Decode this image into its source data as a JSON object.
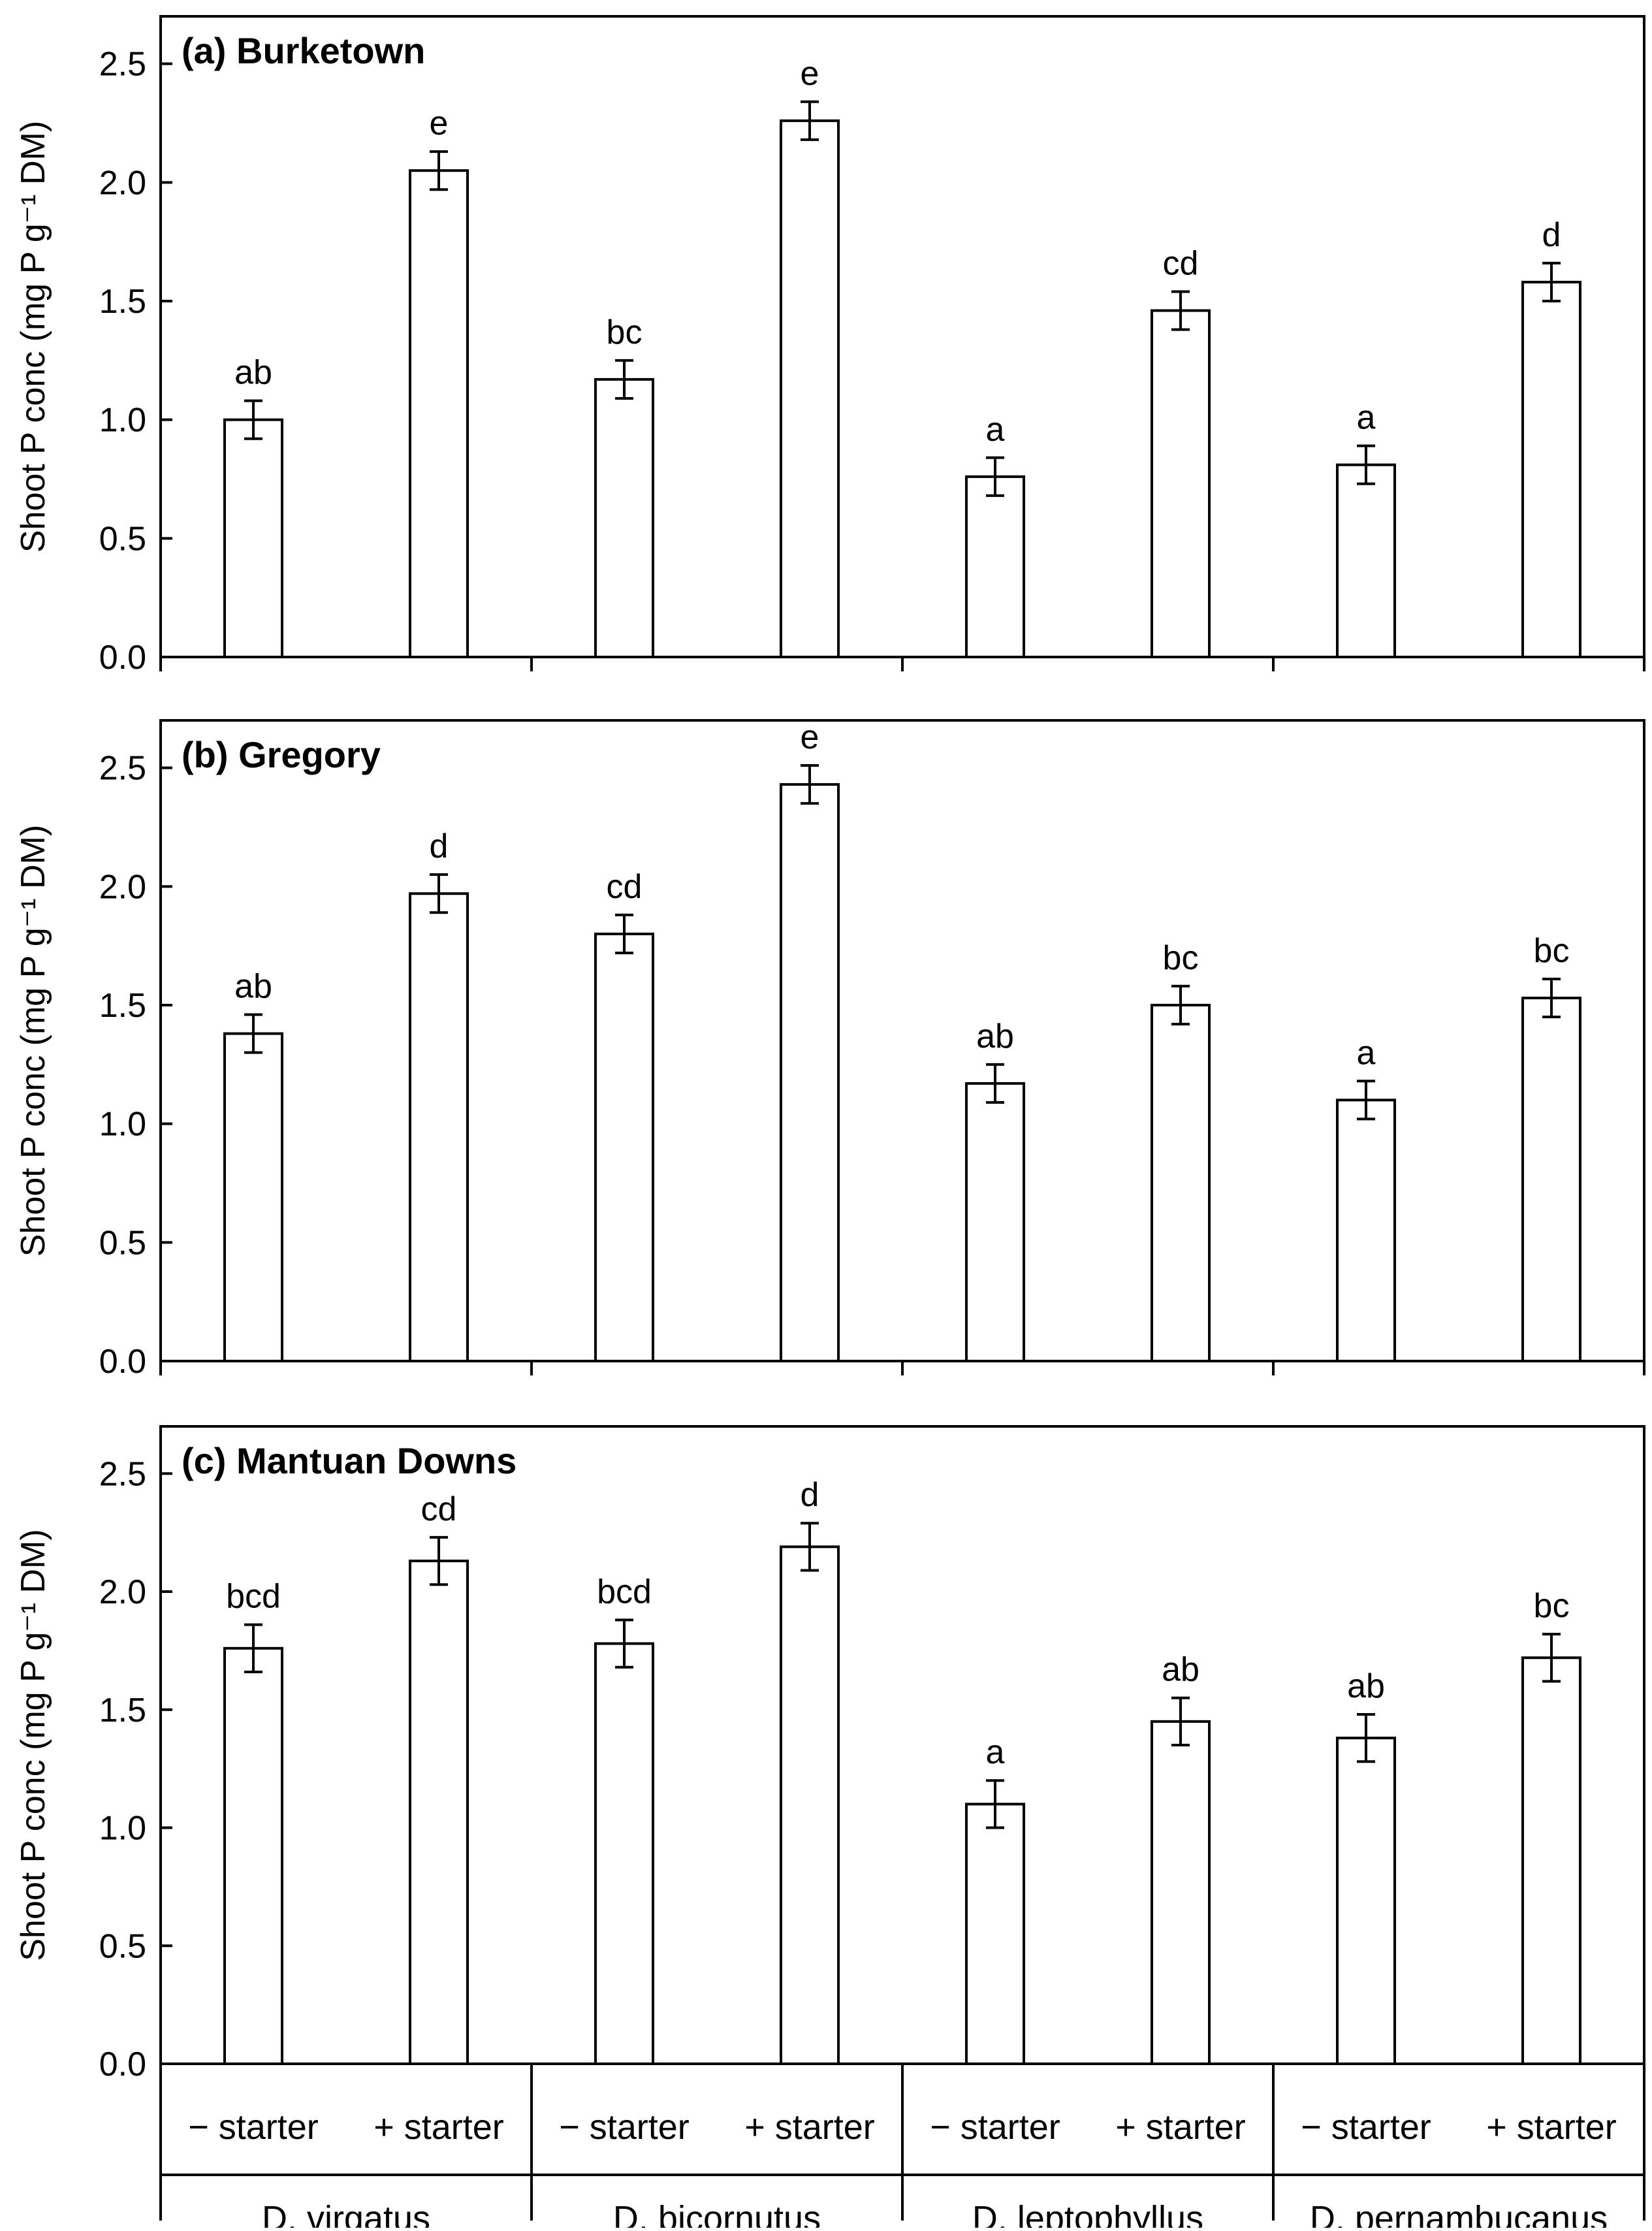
{
  "chart_data": [
    {
      "type": "bar",
      "title": "(a) Burketown",
      "ylabel": "Shoot P conc (mg P g⁻¹ DM)",
      "ylim": [
        0,
        2.7
      ],
      "yticks": [
        "0.0",
        "0.5",
        "1.0",
        "1.5",
        "2.0",
        "2.5"
      ],
      "categories": [
        "− starter",
        "+ starter",
        "− starter",
        "+ starter",
        "− starter",
        "+ starter",
        "− starter",
        "+ starter"
      ],
      "groups": [
        "D. virgatus",
        "D. bicornutus",
        "D. leptophyllus",
        "D. pernambucanus"
      ],
      "values": [
        1.0,
        2.05,
        1.17,
        2.26,
        0.76,
        1.46,
        0.81,
        1.58
      ],
      "errors": [
        0.08,
        0.08,
        0.08,
        0.08,
        0.08,
        0.08,
        0.08,
        0.08
      ],
      "labels": [
        "ab",
        "e",
        "bc",
        "e",
        "a",
        "cd",
        "a",
        "d"
      ]
    },
    {
      "type": "bar",
      "title": "(b) Gregory",
      "ylabel": "Shoot P conc (mg P g⁻¹ DM)",
      "ylim": [
        0,
        2.7
      ],
      "yticks": [
        "0.0",
        "0.5",
        "1.0",
        "1.5",
        "2.0",
        "2.5"
      ],
      "categories": [
        "− starter",
        "+ starter",
        "− starter",
        "+ starter",
        "− starter",
        "+ starter",
        "− starter",
        "+ starter"
      ],
      "groups": [
        "D. virgatus",
        "D. bicornutus",
        "D. leptophyllus",
        "D. pernambucanus"
      ],
      "values": [
        1.38,
        1.97,
        1.8,
        2.43,
        1.17,
        1.5,
        1.1,
        1.53
      ],
      "errors": [
        0.08,
        0.08,
        0.08,
        0.08,
        0.08,
        0.08,
        0.08,
        0.08
      ],
      "labels": [
        "ab",
        "d",
        "cd",
        "e",
        "ab",
        "bc",
        "a",
        "bc"
      ]
    },
    {
      "type": "bar",
      "title": "(c) Mantuan Downs",
      "ylabel": "Shoot P conc (mg P g⁻¹ DM)",
      "ylim": [
        0,
        2.7
      ],
      "yticks": [
        "0.0",
        "0.5",
        "1.0",
        "1.5",
        "2.0",
        "2.5"
      ],
      "categories": [
        "− starter",
        "+ starter",
        "− starter",
        "+ starter",
        "− starter",
        "+ starter",
        "− starter",
        "+ starter"
      ],
      "groups": [
        "D. virgatus",
        "D. bicornutus",
        "D. leptophyllus",
        "D. pernambucanus"
      ],
      "values": [
        1.76,
        2.13,
        1.78,
        2.19,
        1.1,
        1.45,
        1.38,
        1.72
      ],
      "errors": [
        0.1,
        0.1,
        0.1,
        0.1,
        0.1,
        0.1,
        0.1,
        0.1
      ],
      "labels": [
        "bcd",
        "cd",
        "bcd",
        "d",
        "a",
        "ab",
        "ab",
        "bc"
      ]
    }
  ]
}
